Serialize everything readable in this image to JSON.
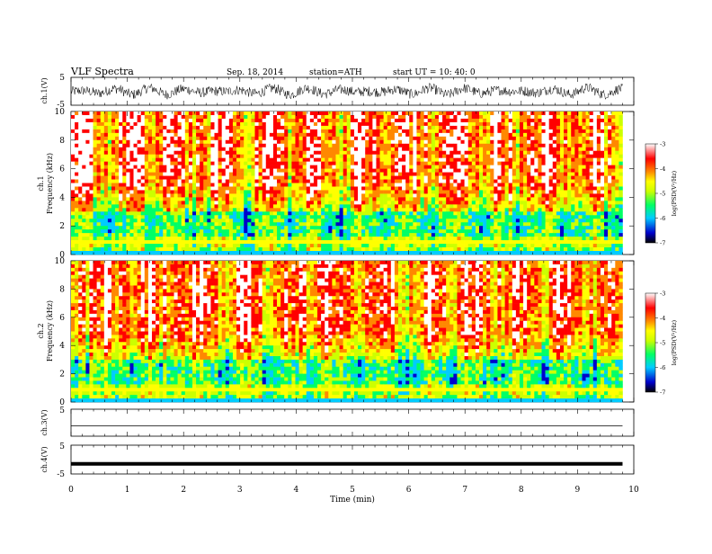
{
  "header": {
    "title": "VLF  Spectra",
    "date": "Sep. 18, 2014",
    "station": "station=ATH",
    "start": "start  UT =   10: 40: 0"
  },
  "colors": {
    "trace": "#000000",
    "spectrogram_palette": [
      "#000000",
      "#0000cc",
      "#00ccff",
      "#00ff66",
      "#ccff00",
      "#ffff00",
      "#ff8800",
      "#ff0000",
      "#ffffff"
    ]
  },
  "chart_data": [
    {
      "type": "line",
      "panel": "ch1_waveform",
      "ylabel": "ch.1(V)",
      "ylim": [
        -5,
        5
      ],
      "ytick_labels": [
        "5",
        "-5"
      ],
      "trace_amplitude_typical": [
        -2,
        2
      ],
      "x_range_min": [
        0,
        9.8
      ]
    },
    {
      "type": "heatmap",
      "panel": "ch1_spectrogram",
      "ylabel": "ch.1\nFrequency (kHz)",
      "ylabel_line1": "ch.1",
      "ylabel_line2": "Frequency  (kHz)",
      "ylim": [
        0,
        10
      ],
      "ytick_labels": [
        "0",
        "2",
        "4",
        "6",
        "8",
        "10"
      ],
      "colorbar": {
        "label": "log(PSD(V²/Hz)",
        "range": [
          -7,
          -3
        ],
        "tick_labels": [
          "-3",
          "-4",
          "-5",
          "-6",
          "-7"
        ]
      }
    },
    {
      "type": "heatmap",
      "panel": "ch2_spectrogram",
      "ylabel_line1": "ch.2",
      "ylabel_line2": "Frequency  (kHz)",
      "ylim": [
        0,
        10
      ],
      "ytick_labels": [
        "0",
        "2",
        "4",
        "6",
        "8",
        "10"
      ],
      "colorbar": {
        "label": "log(PSD(V²/Hz)",
        "range": [
          -7,
          -3
        ],
        "tick_labels": [
          "-3",
          "-4",
          "-5",
          "-6",
          "-7"
        ]
      }
    },
    {
      "type": "line",
      "panel": "ch3_waveform",
      "ylabel": "ch.3(V)",
      "ylim": [
        -5,
        5
      ],
      "ytick_labels": [
        "5"
      ],
      "level": -1.2
    },
    {
      "type": "line",
      "panel": "ch4_waveform",
      "ylabel": "ch.4(V)",
      "ylim": [
        -5,
        5
      ],
      "ytick_labels": [
        "5",
        "-5"
      ],
      "level": -1.5
    }
  ],
  "xaxis": {
    "label": "Time  (min)",
    "range": [
      0,
      10
    ],
    "tick_labels": [
      "0",
      "1",
      "2",
      "3",
      "4",
      "5",
      "6",
      "7",
      "8",
      "9",
      "10"
    ]
  }
}
